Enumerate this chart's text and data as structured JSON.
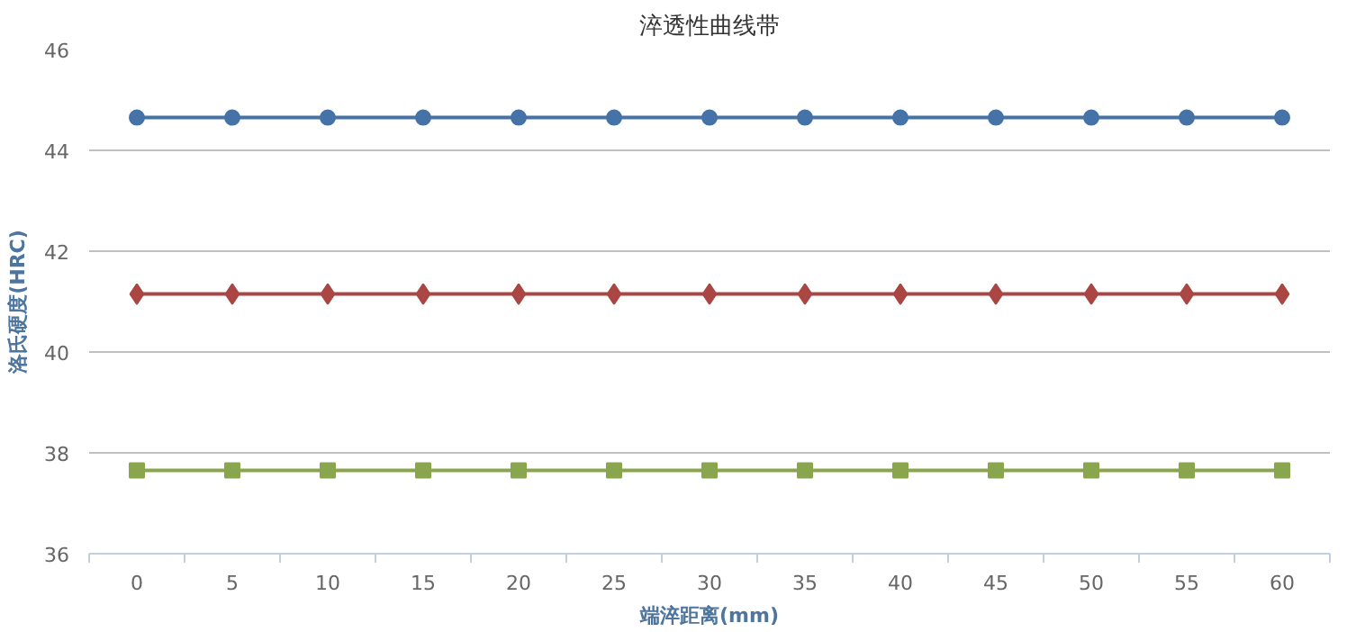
{
  "chart_data": {
    "type": "line",
    "title": "淬透性曲线带",
    "xlabel": "端淬距离(mm)",
    "ylabel": "洛氏硬度(HRC)",
    "categories": [
      "0",
      "5",
      "10",
      "15",
      "20",
      "25",
      "30",
      "35",
      "40",
      "45",
      "50",
      "55",
      "60"
    ],
    "series": [
      {
        "color": "#4572a7",
        "marker": "circle",
        "values": [
          44.65,
          44.65,
          44.65,
          44.65,
          44.65,
          44.65,
          44.65,
          44.65,
          44.65,
          44.65,
          44.65,
          44.65,
          44.65
        ]
      },
      {
        "color": "#aa4643",
        "marker": "diamond",
        "values": [
          41.15,
          41.15,
          41.15,
          41.15,
          41.15,
          41.15,
          41.15,
          41.15,
          41.15,
          41.15,
          41.15,
          41.15,
          41.15
        ]
      },
      {
        "color": "#89a54e",
        "marker": "square",
        "values": [
          37.65,
          37.65,
          37.65,
          37.65,
          37.65,
          37.65,
          37.65,
          37.65,
          37.65,
          37.65,
          37.65,
          37.65,
          37.65
        ]
      }
    ],
    "ylim": [
      36,
      46
    ],
    "yticks": [
      36,
      38,
      40,
      42,
      44,
      46
    ],
    "grid": "y",
    "line_style": "solid"
  }
}
